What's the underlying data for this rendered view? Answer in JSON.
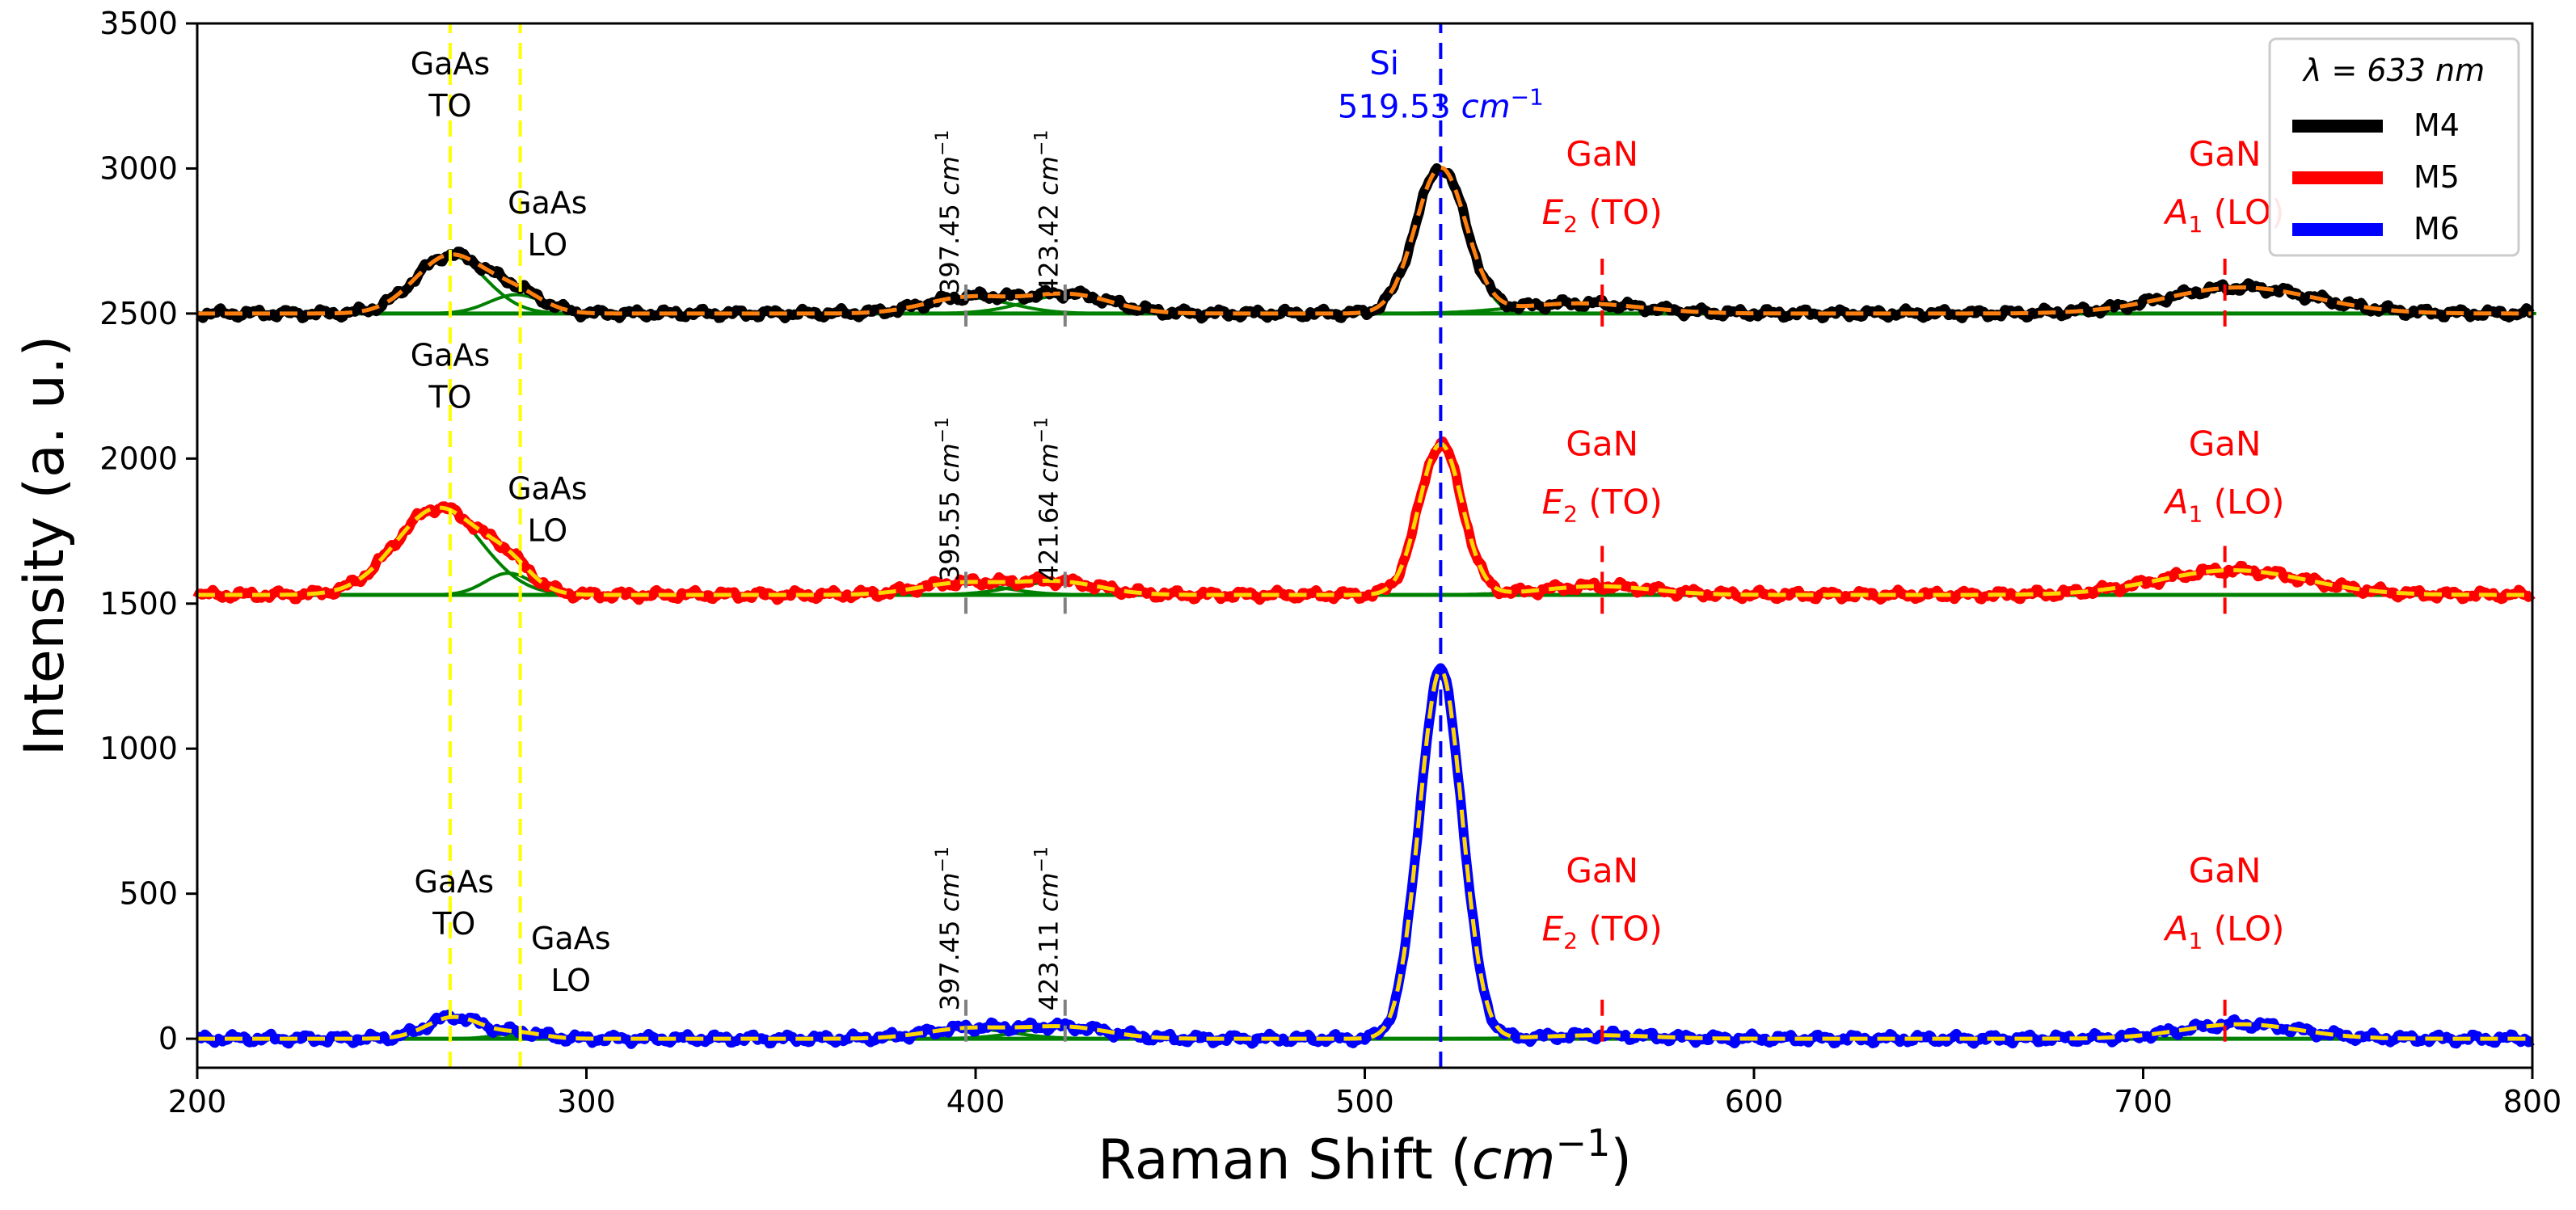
{
  "chart_data": {
    "type": "line",
    "xlabel": "Raman Shift (",
    "xlabel_unit_base": "cm",
    "xlabel_unit_exp": "−1",
    "xlabel_close": ")",
    "ylabel": "Intensity (a. u.)",
    "xlim": [
      200,
      800
    ],
    "ylim": [
      -100,
      3500
    ],
    "x_ticks": [
      "200",
      "300",
      "400",
      "500",
      "600",
      "700",
      "800"
    ],
    "y_ticks": [
      "0",
      "500",
      "1000",
      "1500",
      "2000",
      "2500",
      "3000",
      "3500"
    ],
    "legend": {
      "position": "top-right",
      "title_lambda": "λ = 633 ",
      "title_unit": "nm",
      "entries": [
        {
          "label": "M4",
          "color": "#000000"
        },
        {
          "label": "M5",
          "color": "#ff0000"
        },
        {
          "label": "M6",
          "color": "#0000ff"
        }
      ]
    },
    "fit_color": "#008000",
    "envelope_colors": [
      "#ff7f0e",
      "#ffd700",
      "#ffd700"
    ],
    "series": [
      {
        "name": "M4",
        "color": "#000000",
        "baseline": 2500,
        "peaks": [
          [
            265,
            200,
            9
          ],
          [
            282,
            65,
            7
          ],
          [
            398,
            55,
            11
          ],
          [
            424,
            65,
            11
          ],
          [
            519.5,
            500,
            6.5
          ],
          [
            555,
            35,
            16
          ],
          [
            725,
            90,
            19
          ]
        ]
      },
      {
        "name": "M5",
        "color": "#ff0000",
        "baseline": 1530,
        "peaks": [
          [
            262,
            300,
            11
          ],
          [
            280,
            75,
            6
          ],
          [
            396,
            40,
            11
          ],
          [
            421,
            45,
            11
          ],
          [
            519.5,
            520,
            5.5
          ],
          [
            560,
            30,
            14
          ],
          [
            723,
            85,
            19
          ]
        ]
      },
      {
        "name": "M6",
        "color": "#0000ff",
        "baseline": 0,
        "peaks": [
          [
            266,
            75,
            7
          ],
          [
            283,
            20,
            6
          ],
          [
            398,
            35,
            11
          ],
          [
            423,
            40,
            11
          ],
          [
            519.5,
            1270,
            5.5
          ],
          [
            560,
            12,
            14
          ],
          [
            725,
            50,
            15
          ]
        ]
      }
    ],
    "vlines": [
      {
        "x": 265,
        "color": "#ffff00",
        "segments": [
          [
            -100,
            3500
          ]
        ]
      },
      {
        "x": 283,
        "color": "#ffff00",
        "segments": [
          [
            -100,
            3500
          ]
        ]
      },
      {
        "x": 519.5,
        "color": "#0000ff",
        "segments": [
          [
            -100,
            3500
          ]
        ]
      },
      {
        "x": 397.5,
        "color": "#808080",
        "segments": [
          [
            2455,
            2600
          ],
          [
            1465,
            1610
          ],
          [
            -10,
            165
          ]
        ]
      },
      {
        "x": 423,
        "color": "#808080",
        "segments": [
          [
            2455,
            2600
          ],
          [
            1465,
            1610
          ],
          [
            -10,
            165
          ]
        ]
      },
      {
        "x": 561,
        "color": "#ff0000",
        "segments": [
          [
            2455,
            2700
          ],
          [
            1465,
            1700
          ],
          [
            -10,
            160
          ]
        ]
      },
      {
        "x": 721,
        "color": "#ff0000",
        "segments": [
          [
            2455,
            2700
          ],
          [
            1465,
            1700
          ],
          [
            -10,
            160
          ]
        ]
      }
    ],
    "annotations": {
      "gaas_to": [
        {
          "x": 265,
          "y": 3325,
          "text": "GaAs"
        },
        {
          "x": 265,
          "y": 3180,
          "text": "TO"
        },
        {
          "x": 265,
          "y": 2320,
          "text": "GaAs"
        },
        {
          "x": 265,
          "y": 2175,
          "text": "TO"
        },
        {
          "x": 266,
          "y": 505,
          "text": "GaAs"
        },
        {
          "x": 266,
          "y": 360,
          "text": "TO"
        }
      ],
      "gaas_lo": [
        {
          "x": 290,
          "y": 2845,
          "text": "GaAs"
        },
        {
          "x": 290,
          "y": 2700,
          "text": "LO"
        },
        {
          "x": 290,
          "y": 1860,
          "text": "GaAs"
        },
        {
          "x": 290,
          "y": 1715,
          "text": "LO"
        },
        {
          "x": 296,
          "y": 310,
          "text": "GaAs"
        },
        {
          "x": 296,
          "y": 165,
          "text": "LO"
        }
      ],
      "peak_positions": [
        {
          "x": 397.5,
          "y": 2850,
          "value": "397.45 "
        },
        {
          "x": 423,
          "y": 2850,
          "value": "423.42 "
        },
        {
          "x": 397.5,
          "y": 1860,
          "value": "395.55 "
        },
        {
          "x": 423,
          "y": 1860,
          "value": "421.64 "
        },
        {
          "x": 397.5,
          "y": 380,
          "value": "397.45 "
        },
        {
          "x": 423,
          "y": 380,
          "value": "423.11 "
        }
      ],
      "peak_unit": "cm",
      "peak_unit_exp": "−1",
      "si_label": "Si",
      "si_value": "519.53 ",
      "si_unit": "cm",
      "si_unit_exp": "−1",
      "si_label_pos": [
        505,
        3325
      ],
      "si_value_pos": [
        519.5,
        3175
      ],
      "gan_e2": [
        {
          "x": 561,
          "y": 3010,
          "name": "GaN",
          "mode": "E",
          "sub": "2",
          "tail": " (TO)"
        },
        {
          "x": 561,
          "y": 2010,
          "name": "GaN",
          "mode": "E",
          "sub": "2",
          "tail": " (TO)"
        },
        {
          "x": 561,
          "y": 540,
          "name": "GaN",
          "mode": "E",
          "sub": "2",
          "tail": " (TO)"
        }
      ],
      "gan_a1": [
        {
          "x": 721,
          "y": 3010,
          "name": "GaN",
          "mode": "A",
          "sub": "1",
          "tail": " (LO)"
        },
        {
          "x": 721,
          "y": 2010,
          "name": "GaN",
          "mode": "A",
          "sub": "1",
          "tail": " (LO)"
        },
        {
          "x": 721,
          "y": 540,
          "name": "GaN",
          "mode": "A",
          "sub": "1",
          "tail": " (LO)"
        }
      ]
    }
  }
}
